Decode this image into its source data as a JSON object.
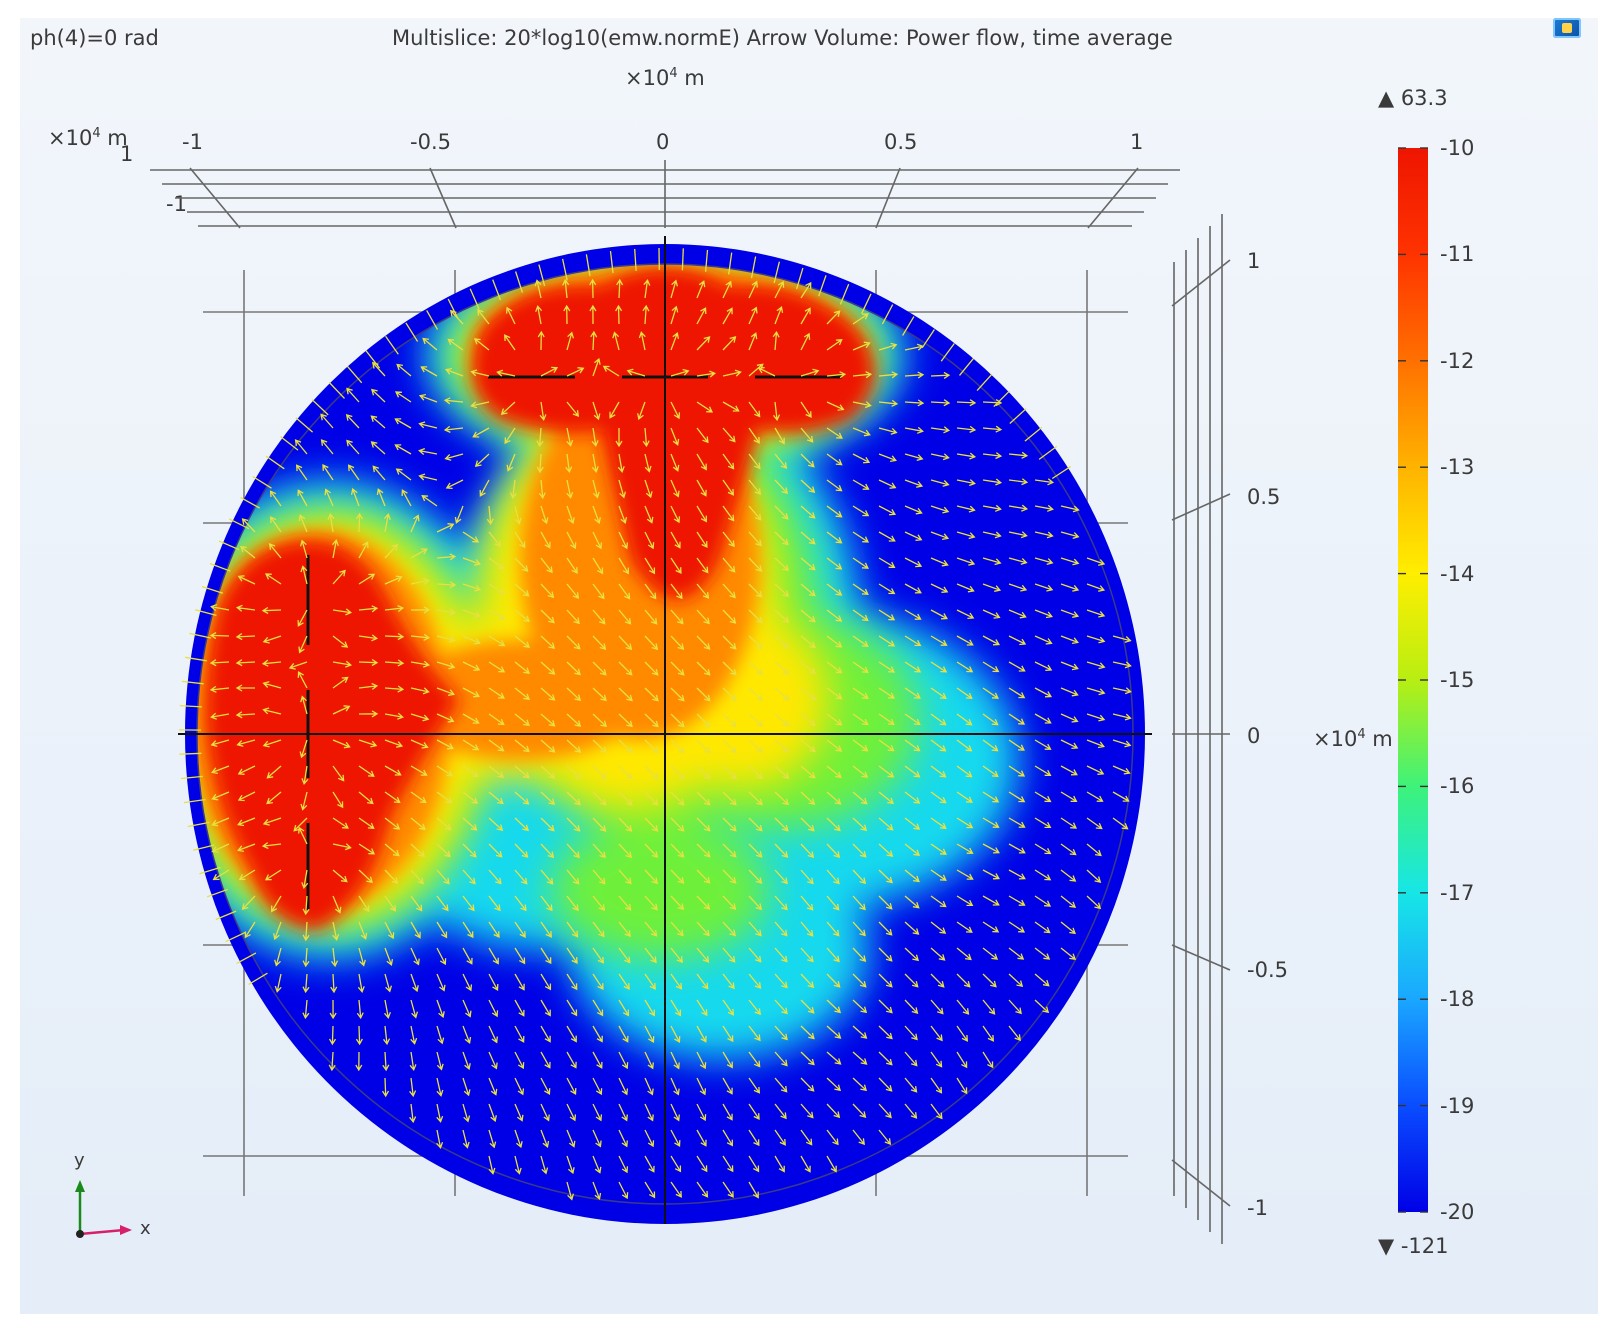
{
  "header": {
    "parameter": "ph(4)=0 rad",
    "title": "Multislice: 20*log10(emw.normE)  Arrow Volume: Power flow, time average"
  },
  "axes": {
    "scale": "×10",
    "scale_exp": "4",
    "unit": "m",
    "x_ticks": [
      "-1",
      "-0.5",
      "0",
      "0.5",
      "1"
    ],
    "y_ticks": [
      "1",
      "0.5",
      "0",
      "-0.5",
      "-1"
    ],
    "z_tick": "-1",
    "depth_tick": "1",
    "triad_y": "y",
    "triad_x": "x"
  },
  "colorbar": {
    "max_label": "▲ 63.3",
    "min_label": "▼ -121",
    "ticks": [
      "-10",
      "-11",
      "-12",
      "-13",
      "-14",
      "-15",
      "-16",
      "-17",
      "-18",
      "-19",
      "-20"
    ],
    "range": [
      -20,
      -10
    ],
    "colors": [
      "#0000e6",
      "#0a4dff",
      "#1aa7ff",
      "#17e6e6",
      "#3ef27a",
      "#b8ee12",
      "#ffee00",
      "#ffb300",
      "#ff7000",
      "#ff3300",
      "#ee1500"
    ]
  },
  "chart_data": {
    "type": "heatmap",
    "x_range": [
      -1,
      1
    ],
    "y_range": [
      -1,
      1
    ],
    "grid": true,
    "legend": "right"
  },
  "icons": {
    "corner": "software-logo-icon"
  }
}
